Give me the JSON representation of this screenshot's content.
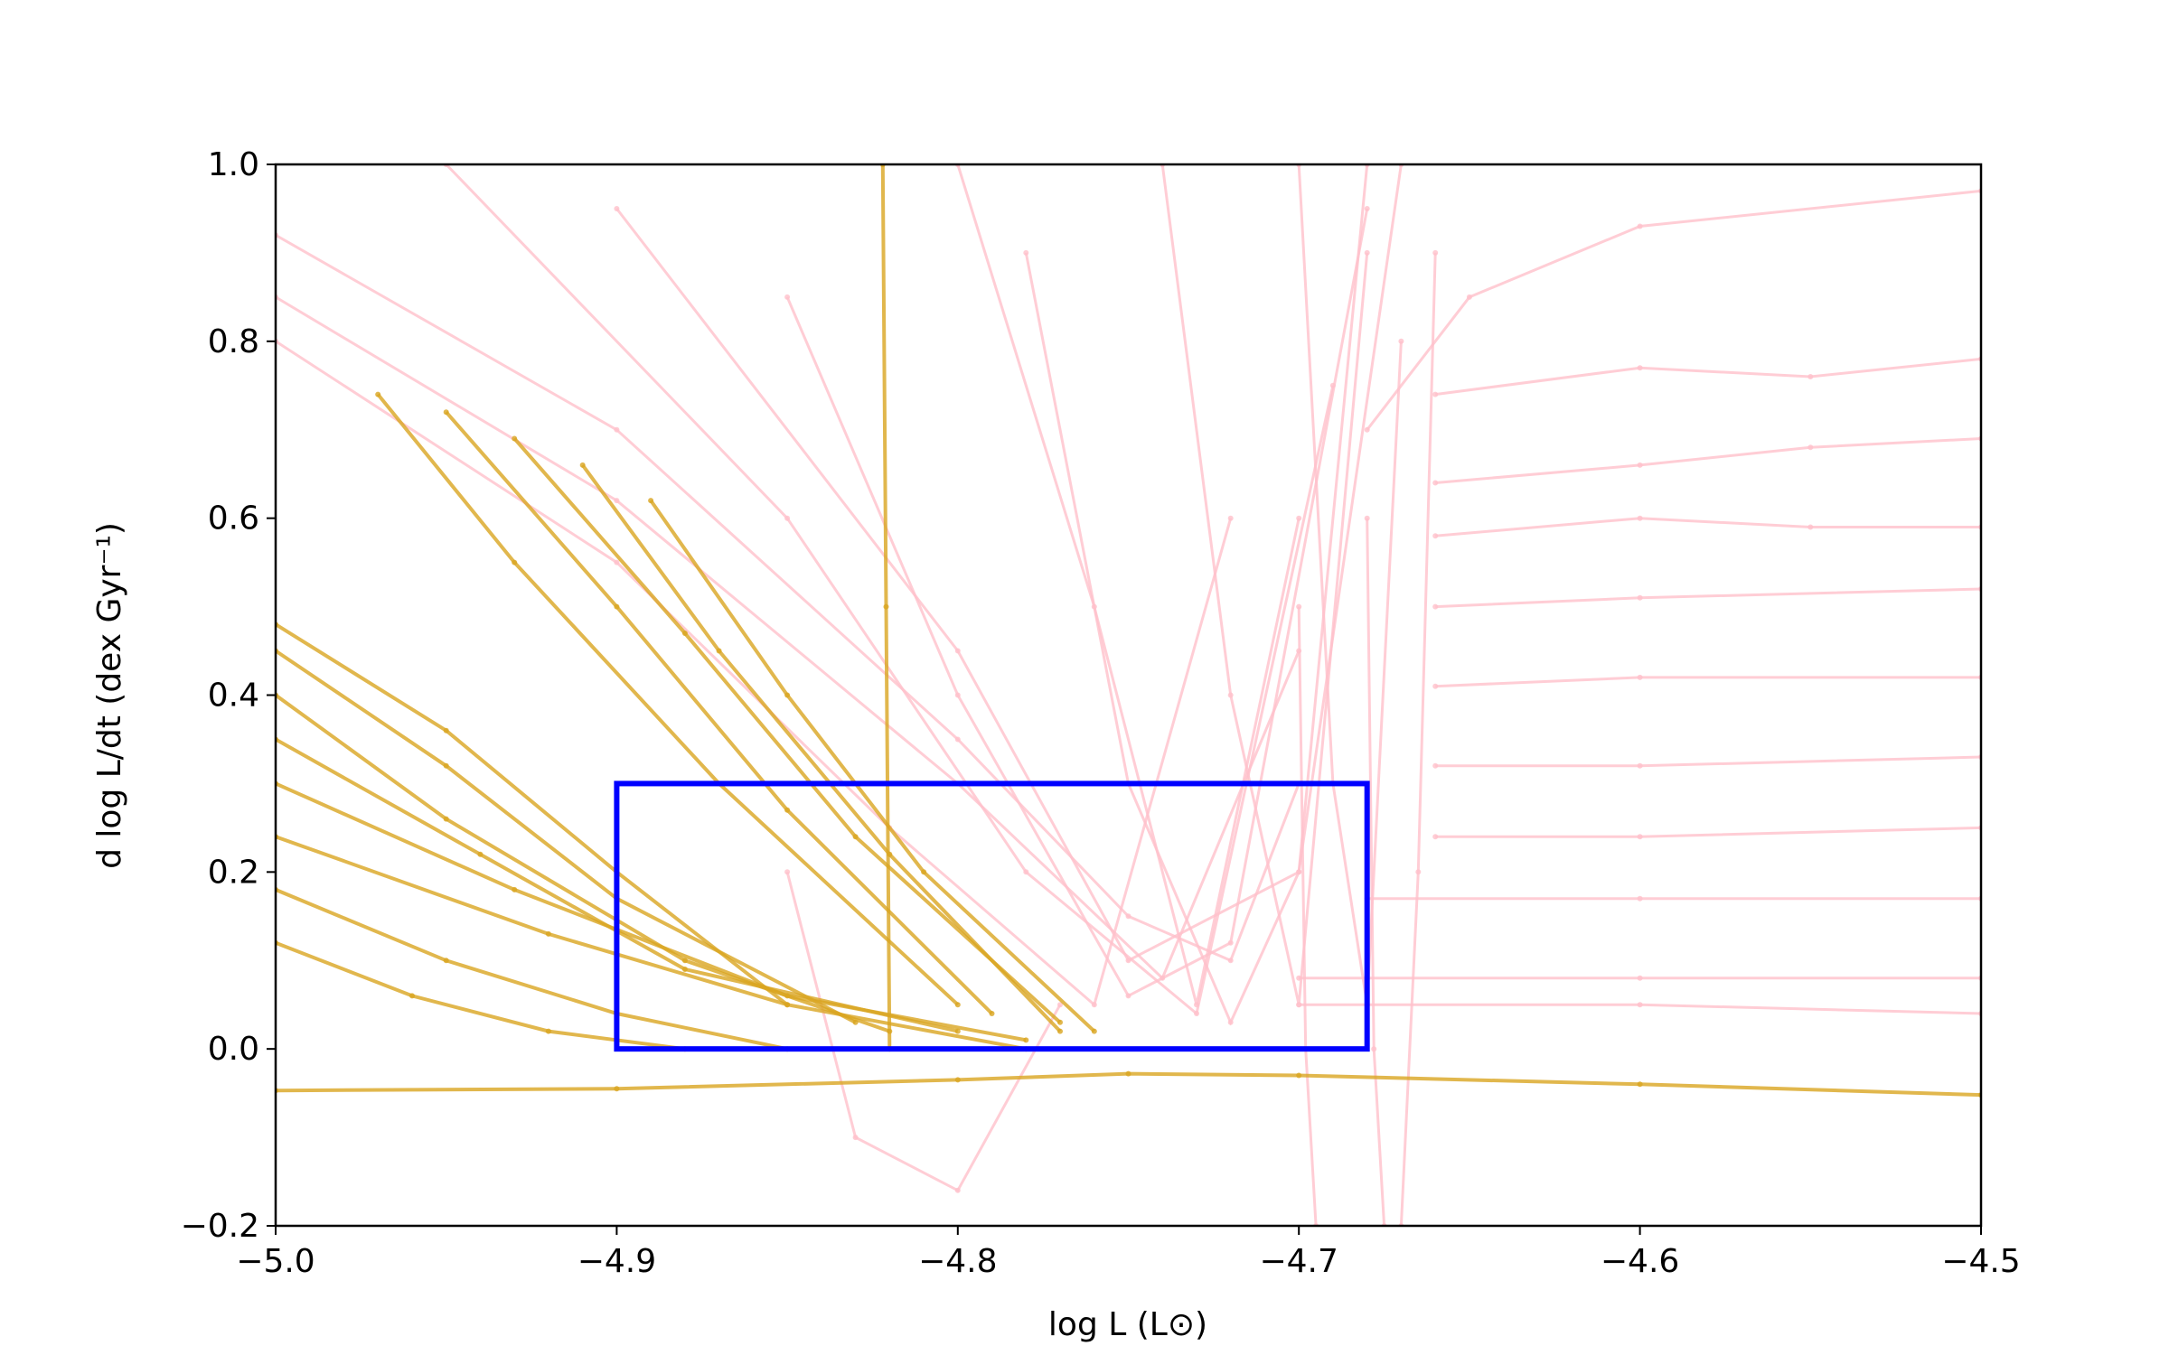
{
  "chart_data": {
    "type": "line",
    "title": "",
    "xlabel": "log L (L⊙)",
    "ylabel": "d log L/dt (dex Gyr⁻¹)",
    "xlim": [
      -5.0,
      -4.5
    ],
    "ylim": [
      -0.2,
      1.0
    ],
    "grid": false,
    "legend": "none",
    "x_ticks": [
      -5.0,
      -4.9,
      -4.8,
      -4.7,
      -4.6,
      -4.5
    ],
    "x_tick_labels": [
      "−5.0",
      "−4.9",
      "−4.8",
      "−4.7",
      "−4.6",
      "−4.5"
    ],
    "y_ticks": [
      -0.2,
      0.0,
      0.2,
      0.4,
      0.6,
      0.8,
      1.0
    ],
    "y_tick_labels": [
      "−0.2",
      "0.0",
      "0.2",
      "0.4",
      "0.6",
      "0.8",
      "1.0"
    ],
    "colors": {
      "group_a": "#daa520",
      "group_b": "#ffc0cb",
      "highlight_box": "#0000ff"
    },
    "highlight_box": {
      "x": [
        -4.9,
        -4.68
      ],
      "y": [
        0.0,
        0.3
      ]
    },
    "series": [
      {
        "group": "b",
        "tracks": [
          {
            "x": [
              -4.5,
              -4.6,
              -4.65,
              -4.68
            ],
            "y": [
              0.97,
              0.93,
              0.85,
              0.7
            ]
          },
          {
            "x": [
              -4.5,
              -4.55,
              -4.6,
              -4.66
            ],
            "y": [
              0.78,
              0.76,
              0.77,
              0.74
            ]
          },
          {
            "x": [
              -4.5,
              -4.55,
              -4.6,
              -4.66
            ],
            "y": [
              0.69,
              0.68,
              0.66,
              0.64
            ]
          },
          {
            "x": [
              -4.5,
              -4.55,
              -4.6,
              -4.66
            ],
            "y": [
              0.59,
              0.59,
              0.6,
              0.58
            ]
          },
          {
            "x": [
              -4.5,
              -4.6,
              -4.66
            ],
            "y": [
              0.52,
              0.51,
              0.5
            ]
          },
          {
            "x": [
              -4.5,
              -4.6,
              -4.66
            ],
            "y": [
              0.42,
              0.42,
              0.41
            ]
          },
          {
            "x": [
              -4.5,
              -4.6,
              -4.66
            ],
            "y": [
              0.33,
              0.32,
              0.32
            ]
          },
          {
            "x": [
              -4.5,
              -4.6,
              -4.66
            ],
            "y": [
              0.25,
              0.24,
              0.24
            ]
          },
          {
            "x": [
              -4.5,
              -4.6,
              -4.68
            ],
            "y": [
              0.17,
              0.17,
              0.17
            ]
          },
          {
            "x": [
              -4.5,
              -4.6,
              -4.7
            ],
            "y": [
              0.08,
              0.08,
              0.08
            ]
          },
          {
            "x": [
              -4.5,
              -4.6,
              -4.7
            ],
            "y": [
              0.04,
              0.05,
              0.05
            ]
          },
          {
            "x": [
              -5.0,
              -4.9,
              -4.8,
              -4.75,
              -4.72,
              -4.7
            ],
            "y": [
              0.92,
              0.7,
              0.35,
              0.15,
              0.1,
              0.3
            ]
          },
          {
            "x": [
              -5.0,
              -4.9,
              -4.8,
              -4.74,
              -4.7
            ],
            "y": [
              0.85,
              0.62,
              0.3,
              0.08,
              0.45
            ]
          },
          {
            "x": [
              -5.0,
              -4.9,
              -4.82,
              -4.76,
              -4.72
            ],
            "y": [
              0.8,
              0.55,
              0.25,
              0.05,
              0.6
            ]
          },
          {
            "x": [
              -4.95,
              -4.85,
              -4.78,
              -4.73,
              -4.69
            ],
            "y": [
              1.0,
              0.6,
              0.2,
              0.04,
              0.75
            ]
          },
          {
            "x": [
              -4.9,
              -4.8,
              -4.75,
              -4.7,
              -4.67
            ],
            "y": [
              0.95,
              0.45,
              0.1,
              0.2,
              1.0
            ]
          },
          {
            "x": [
              -4.85,
              -4.8,
              -4.75,
              -4.72,
              -4.68
            ],
            "y": [
              0.85,
              0.4,
              0.06,
              0.12,
              0.95
            ]
          },
          {
            "x": [
              -4.8,
              -4.76,
              -4.73,
              -4.7
            ],
            "y": [
              1.0,
              0.5,
              0.05,
              0.6
            ]
          },
          {
            "x": [
              -4.78,
              -4.75,
              -4.72,
              -4.7,
              -4.68
            ],
            "y": [
              0.9,
              0.3,
              0.03,
              0.2,
              1.0
            ]
          },
          {
            "x": [
              -4.74,
              -4.72,
              -4.7,
              -4.68
            ],
            "y": [
              1.0,
              0.4,
              0.05,
              0.9
            ]
          },
          {
            "x": [
              -4.7,
              -4.69,
              -4.68,
              -4.67
            ],
            "y": [
              1.0,
              0.3,
              0.05,
              0.8
            ]
          },
          {
            "x": [
              -4.85,
              -4.83,
              -4.8,
              -4.77
            ],
            "y": [
              0.2,
              -0.1,
              -0.16,
              0.05
            ]
          },
          {
            "x": [
              -4.7,
              -4.698,
              -4.695
            ],
            "y": [
              0.5,
              0.0,
              -0.2
            ]
          },
          {
            "x": [
              -4.68,
              -4.678,
              -4.675
            ],
            "y": [
              0.6,
              0.0,
              -0.2
            ]
          },
          {
            "x": [
              -4.66,
              -4.665,
              -4.67
            ],
            "y": [
              0.9,
              0.2,
              -0.2
            ]
          }
        ]
      },
      {
        "group": "a",
        "tracks": [
          {
            "x": [
              -5.0,
              -4.9,
              -4.8,
              -4.75,
              -4.7,
              -4.6,
              -4.5
            ],
            "y": [
              -0.047,
              -0.045,
              -0.035,
              -0.028,
              -0.03,
              -0.04,
              -0.052
            ]
          },
          {
            "x": [
              -5.0,
              -4.95,
              -4.9,
              -4.85
            ],
            "y": [
              0.48,
              0.36,
              0.2,
              0.05
            ]
          },
          {
            "x": [
              -5.0,
              -4.95,
              -4.9,
              -4.83
            ],
            "y": [
              0.45,
              0.32,
              0.17,
              0.03
            ]
          },
          {
            "x": [
              -5.0,
              -4.95,
              -4.88,
              -4.82
            ],
            "y": [
              0.4,
              0.26,
              0.1,
              0.02
            ]
          },
          {
            "x": [
              -5.0,
              -4.94,
              -4.88,
              -4.8
            ],
            "y": [
              0.35,
              0.22,
              0.09,
              0.02
            ]
          },
          {
            "x": [
              -5.0,
              -4.93,
              -4.85,
              -4.78
            ],
            "y": [
              0.3,
              0.18,
              0.06,
              0.01
            ]
          },
          {
            "x": [
              -5.0,
              -4.92,
              -4.85,
              -4.78
            ],
            "y": [
              0.24,
              0.13,
              0.05,
              0.0
            ]
          },
          {
            "x": [
              -5.0,
              -4.95,
              -4.9,
              -4.85
            ],
            "y": [
              0.18,
              0.1,
              0.04,
              0.0
            ]
          },
          {
            "x": [
              -5.0,
              -4.96,
              -4.92,
              -4.88
            ],
            "y": [
              0.12,
              0.06,
              0.02,
              0.0
            ]
          },
          {
            "x": [
              -4.97,
              -4.93,
              -4.87,
              -4.8
            ],
            "y": [
              0.74,
              0.55,
              0.3,
              0.05
            ]
          },
          {
            "x": [
              -4.95,
              -4.9,
              -4.85,
              -4.79
            ],
            "y": [
              0.72,
              0.5,
              0.27,
              0.04
            ]
          },
          {
            "x": [
              -4.93,
              -4.88,
              -4.83,
              -4.77
            ],
            "y": [
              0.69,
              0.47,
              0.24,
              0.03
            ]
          },
          {
            "x": [
              -4.91,
              -4.87,
              -4.82,
              -4.77
            ],
            "y": [
              0.66,
              0.45,
              0.22,
              0.02
            ]
          },
          {
            "x": [
              -4.89,
              -4.85,
              -4.81,
              -4.76
            ],
            "y": [
              0.62,
              0.4,
              0.2,
              0.02
            ]
          },
          {
            "x": [
              -4.82,
              -4.821,
              -4.822
            ],
            "y": [
              0.0,
              0.5,
              1.0
            ]
          }
        ]
      }
    ]
  }
}
